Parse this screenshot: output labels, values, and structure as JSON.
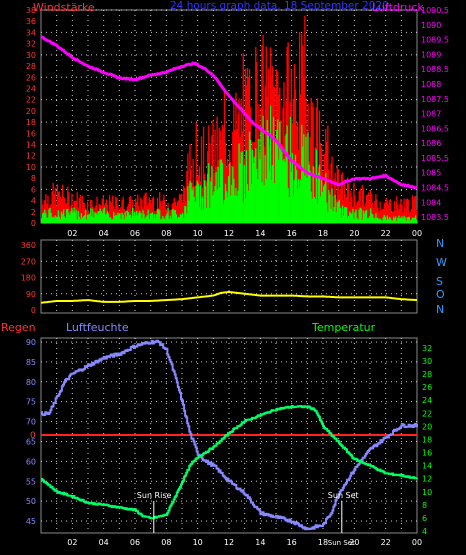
{
  "colors": {
    "background": "#000000",
    "gust": "#ff0000",
    "wind": "#00ff00",
    "pressure": "#ff00ff",
    "direction": "#ffff00",
    "humidity": "#8888ff",
    "temperature": "#00ff66",
    "rain": "#ff2020",
    "grid": "#ffffff",
    "title_blue": "#3333ff",
    "left_axis_red": "#ff3333",
    "right_axis_magenta": "#ff00ff",
    "dir_labels": "#3399ff",
    "temp_axis": "#00ff00",
    "hum_axis": "#8888ff"
  },
  "header": {
    "windstaerke": "Windstärke",
    "title": "24 hours graph data, 18 September 2020",
    "luftdruck": "Luftdruck"
  },
  "chart_data": [
    {
      "type": "bar",
      "name_left": "Windstärke",
      "name_right": "Luftdruck",
      "x_ticks": [
        "02",
        "04",
        "06",
        "08",
        "10",
        "12",
        "14",
        "16",
        "18",
        "20",
        "22",
        "00"
      ],
      "y_left": {
        "range": [
          0,
          38
        ],
        "ticks": [
          "0",
          "2",
          "4",
          "6",
          "8",
          "10",
          "12",
          "14",
          "16",
          "18",
          "20",
          "22",
          "24",
          "26",
          "28",
          "30",
          "32",
          "34",
          "36",
          "38"
        ]
      },
      "y_right": {
        "range": [
          1083.3,
          1090.5
        ],
        "ticks": [
          "1083.5",
          "1084",
          "1084.5",
          "1085",
          "1085.5",
          "1086",
          "1086.5",
          "1087",
          "1087.5",
          "1088",
          "1088.5",
          "1089",
          "1089.5",
          "1090",
          "1090.5"
        ]
      },
      "gust_keypoints": [
        [
          0,
          5
        ],
        [
          1,
          6
        ],
        [
          2,
          5
        ],
        [
          3,
          4
        ],
        [
          4,
          4
        ],
        [
          5,
          4
        ],
        [
          6,
          4
        ],
        [
          7,
          5
        ],
        [
          8,
          4
        ],
        [
          9,
          5
        ],
        [
          9.5,
          12
        ],
        [
          10,
          13
        ],
        [
          11,
          15
        ],
        [
          12,
          18
        ],
        [
          13,
          22
        ],
        [
          13.5,
          26
        ],
        [
          14,
          28
        ],
        [
          14.5,
          26
        ],
        [
          15,
          27
        ],
        [
          16,
          26
        ],
        [
          16.5,
          28
        ],
        [
          17,
          25
        ],
        [
          18,
          16
        ],
        [
          18.5,
          10
        ],
        [
          19,
          8
        ],
        [
          20,
          6
        ],
        [
          21,
          5
        ],
        [
          22,
          4
        ],
        [
          23,
          4
        ],
        [
          24,
          4
        ]
      ],
      "wind_keypoints": [
        [
          0,
          2
        ],
        [
          1,
          2
        ],
        [
          2,
          2
        ],
        [
          3,
          2
        ],
        [
          4,
          2
        ],
        [
          5,
          2
        ],
        [
          6,
          2
        ],
        [
          7,
          2
        ],
        [
          8,
          2
        ],
        [
          9,
          2
        ],
        [
          9.5,
          6
        ],
        [
          10,
          7
        ],
        [
          11,
          9
        ],
        [
          12,
          10
        ],
        [
          13,
          12
        ],
        [
          13.5,
          15
        ],
        [
          14,
          16
        ],
        [
          15,
          15
        ],
        [
          16,
          14
        ],
        [
          17,
          12
        ],
        [
          18,
          8
        ],
        [
          18.5,
          5
        ],
        [
          19,
          3
        ],
        [
          20,
          2
        ],
        [
          21,
          2
        ],
        [
          22,
          1
        ],
        [
          23,
          1
        ],
        [
          24,
          1
        ]
      ],
      "pressure_keypoints": [
        [
          0,
          1089.6
        ],
        [
          1,
          1089.3
        ],
        [
          2,
          1088.9
        ],
        [
          3,
          1088.6
        ],
        [
          4,
          1088.4
        ],
        [
          5,
          1088.2
        ],
        [
          6,
          1088.15
        ],
        [
          7,
          1088.3
        ],
        [
          8,
          1088.4
        ],
        [
          9,
          1088.6
        ],
        [
          9.8,
          1088.7
        ],
        [
          10.5,
          1088.5
        ],
        [
          11,
          1088.3
        ],
        [
          12,
          1087.6
        ],
        [
          13,
          1087.0
        ],
        [
          13.5,
          1086.7
        ],
        [
          14,
          1086.5
        ],
        [
          15,
          1086.1
        ],
        [
          16,
          1085.4
        ],
        [
          17,
          1085.0
        ],
        [
          18,
          1084.8
        ],
        [
          19,
          1084.6
        ],
        [
          20,
          1084.8
        ],
        [
          21,
          1084.8
        ],
        [
          22,
          1084.9
        ],
        [
          23,
          1084.6
        ],
        [
          24,
          1084.5
        ]
      ]
    },
    {
      "type": "line",
      "y_ticks": [
        "0",
        "90",
        "180",
        "270",
        "360"
      ],
      "y_range": [
        0,
        360
      ],
      "dir_labels": [
        "N",
        "W",
        "S",
        "O",
        "N"
      ],
      "direction_keypoints": [
        [
          0,
          40
        ],
        [
          1,
          50
        ],
        [
          2,
          50
        ],
        [
          3,
          55
        ],
        [
          4,
          45
        ],
        [
          5,
          45
        ],
        [
          6,
          50
        ],
        [
          7,
          50
        ],
        [
          8,
          55
        ],
        [
          9,
          60
        ],
        [
          10,
          70
        ],
        [
          11,
          80
        ],
        [
          11.5,
          95
        ],
        [
          12,
          100
        ],
        [
          13,
          90
        ],
        [
          14,
          80
        ],
        [
          15,
          80
        ],
        [
          16,
          80
        ],
        [
          17,
          75
        ],
        [
          18,
          75
        ],
        [
          19,
          70
        ],
        [
          20,
          70
        ],
        [
          21,
          70
        ],
        [
          22,
          70
        ],
        [
          23,
          60
        ],
        [
          24,
          55
        ]
      ]
    },
    {
      "type": "line",
      "label_regen": "Regen",
      "label_humidity": "Luftfeuchte",
      "label_temperature": "Temperatur",
      "humidity_axis": {
        "range": [
          42,
          91
        ],
        "ticks": [
          "45",
          "50",
          "55",
          "60",
          "65",
          "70",
          "75",
          "80",
          "85",
          "90"
        ]
      },
      "temperature_axis": {
        "range": [
          3.7,
          33.5
        ],
        "ticks": [
          "4",
          "6",
          "8",
          "10",
          "12",
          "14",
          "16",
          "18",
          "20",
          "22",
          "24",
          "26",
          "28",
          "30",
          "32"
        ]
      },
      "regen_zero_label": "0",
      "regen_level": 0,
      "humidity_keypoints": [
        [
          0,
          72
        ],
        [
          0.5,
          72
        ],
        [
          1,
          76
        ],
        [
          1.5,
          80
        ],
        [
          2,
          82
        ],
        [
          3,
          84
        ],
        [
          4,
          86
        ],
        [
          5,
          87
        ],
        [
          5.5,
          88
        ],
        [
          6,
          89
        ],
        [
          7,
          90
        ],
        [
          7.5,
          90
        ],
        [
          8,
          88
        ],
        [
          8.5,
          82
        ],
        [
          9,
          75
        ],
        [
          9.5,
          67
        ],
        [
          10,
          62
        ],
        [
          10.5,
          60
        ],
        [
          11,
          59
        ],
        [
          12,
          55
        ],
        [
          13,
          52
        ],
        [
          14,
          47
        ],
        [
          15,
          46
        ],
        [
          16,
          45
        ],
        [
          16.5,
          44
        ],
        [
          17,
          43
        ],
        [
          18,
          44
        ],
        [
          18.5,
          47
        ],
        [
          19,
          52
        ],
        [
          20,
          58
        ],
        [
          21,
          63
        ],
        [
          22,
          66
        ],
        [
          23,
          69
        ],
        [
          24,
          69
        ]
      ],
      "temperature_keypoints": [
        [
          0,
          12
        ],
        [
          1,
          10
        ],
        [
          2,
          9.3
        ],
        [
          3,
          8.3
        ],
        [
          4,
          8
        ],
        [
          5,
          7.6
        ],
        [
          6,
          7.2
        ],
        [
          6.5,
          6.3
        ],
        [
          7,
          5.9
        ],
        [
          7.5,
          6.2
        ],
        [
          8,
          6.5
        ],
        [
          8.5,
          9
        ],
        [
          9,
          11.5
        ],
        [
          9.5,
          14
        ],
        [
          10,
          15.3
        ],
        [
          11,
          16.8
        ],
        [
          12,
          19
        ],
        [
          13,
          20.8
        ],
        [
          14,
          21.7
        ],
        [
          15,
          22.6
        ],
        [
          16,
          23
        ],
        [
          17,
          23
        ],
        [
          17.5,
          22.5
        ],
        [
          18,
          20
        ],
        [
          19,
          17.5
        ],
        [
          20,
          15
        ],
        [
          21,
          14
        ],
        [
          22,
          12.8
        ],
        [
          23,
          12.5
        ],
        [
          24,
          12
        ]
      ],
      "annotations": {
        "sunrise": "Sun Rise",
        "sunset": "Sun Set",
        "sunset_bottom": "Sun Set"
      },
      "sunrise_x": 7.2,
      "sunset_x": 19.2
    }
  ],
  "x_ticks": [
    "02",
    "04",
    "06",
    "08",
    "10",
    "12",
    "14",
    "16",
    "18",
    "20",
    "22",
    "00"
  ]
}
